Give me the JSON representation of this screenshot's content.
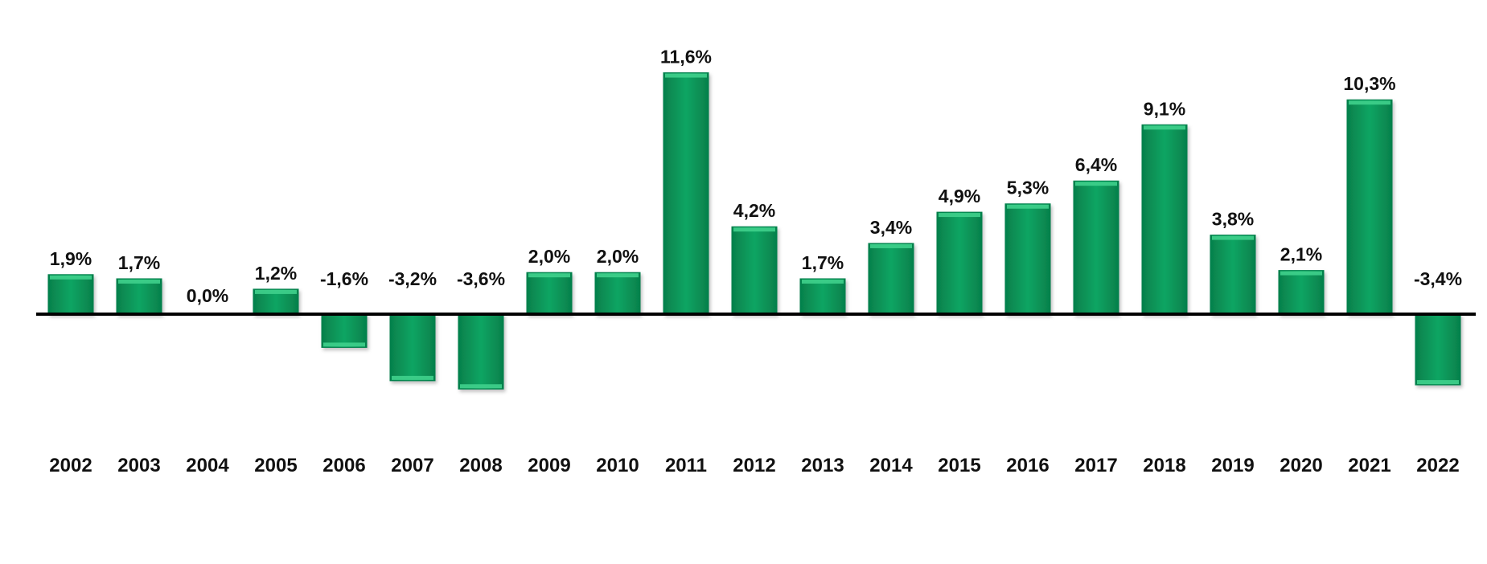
{
  "chart_data": {
    "type": "bar",
    "categories": [
      "2002",
      "2003",
      "2004",
      "2005",
      "2006",
      "2007",
      "2008",
      "2009",
      "2010",
      "2011",
      "2012",
      "2013",
      "2014",
      "2015",
      "2016",
      "2017",
      "2018",
      "2019",
      "2020",
      "2021",
      "2022"
    ],
    "values": [
      1.9,
      1.7,
      0.0,
      1.2,
      -1.6,
      -3.2,
      -3.6,
      2.0,
      2.0,
      11.6,
      4.2,
      1.7,
      3.4,
      4.9,
      5.3,
      6.4,
      9.1,
      3.8,
      2.1,
      10.3,
      -3.4
    ],
    "data_labels": [
      "1,9%",
      "1,7%",
      "0,0%",
      "1,2%",
      "-1,6%",
      "-3,2%",
      "-3,6%",
      "2,0%",
      "2,0%",
      "11,6%",
      "4,2%",
      "1,7%",
      "3,4%",
      "4,9%",
      "5,3%",
      "6,4%",
      "9,1%",
      "3,8%",
      "2,1%",
      "10,3%",
      "-3,4%"
    ],
    "ylim": [
      -4,
      12
    ],
    "grid": false,
    "legend": "none",
    "colors": {
      "bar_fill": "#0aa563",
      "bar_light": "#3fd08c",
      "bar_dark": "#06804b",
      "axis": "#000000",
      "text": "#111111"
    }
  }
}
